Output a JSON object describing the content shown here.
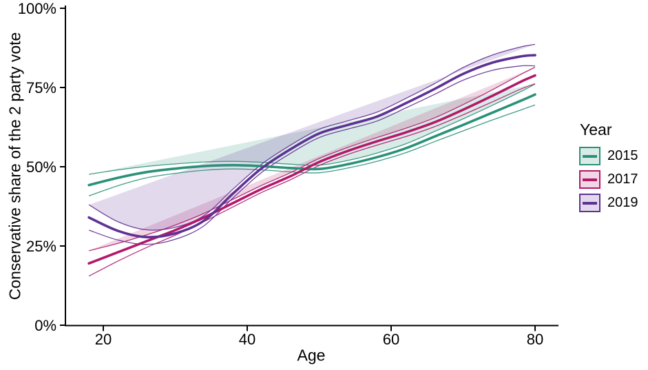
{
  "chart_data": {
    "type": "line",
    "title": "",
    "xlabel": "Age",
    "ylabel": "Conservative share of the 2 party vote",
    "legend_title": "Year",
    "legend_position": "right",
    "grid": false,
    "xlim": [
      14.7,
      83.3
    ],
    "ylim": [
      0,
      100
    ],
    "x_ticks": [
      20,
      40,
      60,
      80
    ],
    "x_tick_labels": [
      "20",
      "40",
      "60",
      "80"
    ],
    "y_ticks": [
      0,
      25,
      50,
      75,
      100
    ],
    "y_tick_labels": [
      "0%",
      "25%",
      "50%",
      "75%",
      "100%"
    ],
    "x": [
      18,
      22,
      26,
      30,
      34,
      38,
      42,
      46,
      50,
      54,
      58,
      62,
      66,
      70,
      74,
      78,
      80
    ],
    "series": [
      {
        "name": "2015",
        "color": "#2a9178",
        "values": [
          44.2,
          46.5,
          48.3,
          49.4,
          50.2,
          50.5,
          50.2,
          49.6,
          49.3,
          50.8,
          53.0,
          55.8,
          59.5,
          63.2,
          67.0,
          70.8,
          72.8
        ],
        "ci_halfwidth": [
          3.4,
          2.5,
          1.8,
          1.5,
          1.3,
          1.2,
          1.2,
          1.2,
          1.2,
          1.2,
          1.3,
          1.4,
          1.6,
          1.9,
          2.3,
          2.9,
          3.3
        ]
      },
      {
        "name": "2017",
        "color": "#b1196b",
        "values": [
          19.5,
          23.0,
          26.5,
          30.0,
          34.0,
          38.5,
          43.0,
          47.0,
          51.5,
          55.0,
          58.0,
          60.8,
          64.0,
          68.0,
          72.3,
          76.8,
          78.8
        ],
        "ci_halfwidth": [
          4.0,
          2.8,
          2.0,
          1.6,
          1.3,
          1.2,
          1.1,
          1.1,
          1.1,
          1.1,
          1.2,
          1.3,
          1.4,
          1.6,
          1.9,
          2.3,
          2.6
        ]
      },
      {
        "name": "2019",
        "color": "#5e3193",
        "values": [
          34.0,
          29.8,
          27.8,
          29.0,
          33.0,
          41.5,
          49.5,
          55.5,
          60.5,
          63.2,
          65.8,
          70.0,
          74.5,
          79.3,
          82.8,
          84.8,
          85.2
        ],
        "ci_halfwidth": [
          4.0,
          2.9,
          2.3,
          1.9,
          1.6,
          1.4,
          1.3,
          1.3,
          1.3,
          1.3,
          1.4,
          1.5,
          1.7,
          2.0,
          2.4,
          3.0,
          3.4
        ]
      }
    ],
    "axis_color": "#000000"
  }
}
